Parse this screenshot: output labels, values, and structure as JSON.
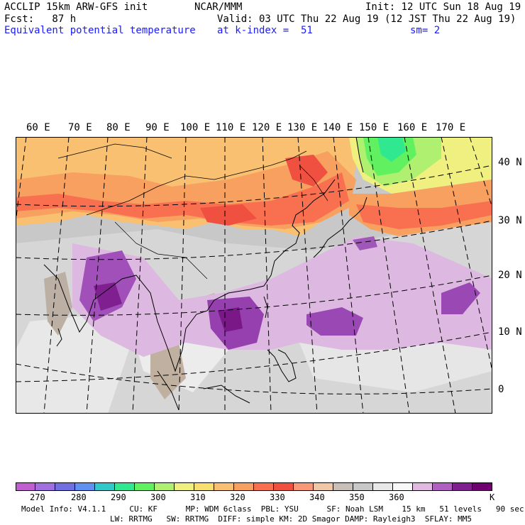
{
  "header": {
    "model": "ACCLIP 15km ARW-GFS init",
    "org": "NCAR/MMM",
    "init": "Init: 12 UTC Sun 18 Aug 19",
    "fcst": "Fcst:   87 h",
    "valid": "Valid: 03 UTC Thu 22 Aug 19 (12 JST Thu 22 Aug 19)",
    "field": "Equivalent potential temperature",
    "level": "at k-index =  51",
    "smooth": "sm= 2"
  },
  "map": {
    "lon_labels": [
      "60 E",
      "70 E",
      "80 E",
      "90 E",
      "100 E",
      "110 E",
      "120 E",
      "130 E",
      "140 E",
      "150 E",
      "160 E",
      "170 E"
    ],
    "lat_labels": [
      "40 N",
      "30 N",
      "20 N",
      "10 N",
      "0"
    ]
  },
  "colorbar": {
    "unit": "K",
    "labels": [
      "270",
      "280",
      "290",
      "300",
      "310",
      "320",
      "330",
      "340",
      "350",
      "360"
    ],
    "colors": [
      "#c060d0",
      "#a070e0",
      "#7070e0",
      "#6090f0",
      "#30c8c8",
      "#30e890",
      "#60f060",
      "#b0f070",
      "#f0f080",
      "#f8e070",
      "#f8c070",
      "#f8a060",
      "#f87050",
      "#f05040",
      "#f89878",
      "#f0c8a8",
      "#c8c0b8",
      "#c8c8c8",
      "#e8e8e8",
      "#f8f8f8",
      "#e0b8e0",
      "#b060c0",
      "#802090",
      "#700070"
    ]
  },
  "footer": {
    "line1": "Model Info: V4.1.1     CU: KF      MP: WDM 6class  PBL: YSU      SF: Noah LSM    15 km   51 levels   90 sec",
    "line2": "LW: RRTMG   SW: RRTMG  DIFF: simple KM: 2D Smagor DAMP: Rayleigh3  SFLAY: MM5"
  }
}
